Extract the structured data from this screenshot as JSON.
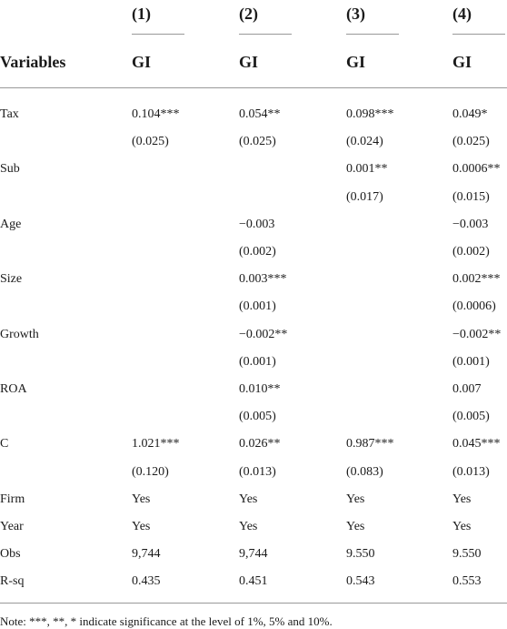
{
  "table": {
    "column_numbers": [
      "(1)",
      "(2)",
      "(3)",
      "(4)"
    ],
    "header_label": "Variables",
    "dependent_variables": [
      "GI",
      "GI",
      "GI",
      "GI"
    ],
    "rows": [
      {
        "label": "Tax",
        "coefficients": [
          "0.104***",
          "0.054**",
          "0.098***",
          "0.049*"
        ],
        "std_errors": [
          "(0.025)",
          "(0.025)",
          "(0.024)",
          "(0.025)"
        ]
      },
      {
        "label": "Sub",
        "coefficients": [
          null,
          null,
          "0.001**",
          "0.0006**"
        ],
        "std_errors": [
          null,
          null,
          "(0.017)",
          "(0.015)"
        ]
      },
      {
        "label": "Age",
        "coefficients": [
          null,
          "−0.003",
          null,
          "−0.003"
        ],
        "std_errors": [
          null,
          "(0.002)",
          null,
          "(0.002)"
        ]
      },
      {
        "label": "Size",
        "coefficients": [
          null,
          "0.003***",
          null,
          "0.002***"
        ],
        "std_errors": [
          null,
          "(0.001)",
          null,
          "(0.0006)"
        ]
      },
      {
        "label": "Growth",
        "coefficients": [
          null,
          "−0.002**",
          null,
          "−0.002**"
        ],
        "std_errors": [
          null,
          "(0.001)",
          null,
          "(0.001)"
        ]
      },
      {
        "label": "ROA",
        "coefficients": [
          null,
          "0.010**",
          null,
          "0.007"
        ],
        "std_errors": [
          null,
          "(0.005)",
          null,
          "(0.005)"
        ]
      },
      {
        "label": "C",
        "coefficients": [
          "1.021***",
          "0.026**",
          "0.987***",
          "0.045***"
        ],
        "std_errors": [
          "(0.120)",
          "(0.013)",
          "(0.083)",
          "(0.013)"
        ]
      },
      {
        "label": "Firm",
        "coefficients": [
          "Yes",
          "Yes",
          "Yes",
          "Yes"
        ]
      },
      {
        "label": "Year",
        "coefficients": [
          "Yes",
          "Yes",
          "Yes",
          "Yes"
        ]
      },
      {
        "label": "Obs",
        "coefficients": [
          "9,744",
          "9,744",
          "9.550",
          "9.550"
        ]
      },
      {
        "label": "R-sq",
        "coefficients": [
          "0.435",
          "0.451",
          "0.543",
          "0.553"
        ]
      }
    ],
    "note": "Note: ***, **, * indicate significance at the level of 1%, 5% and 10%."
  }
}
